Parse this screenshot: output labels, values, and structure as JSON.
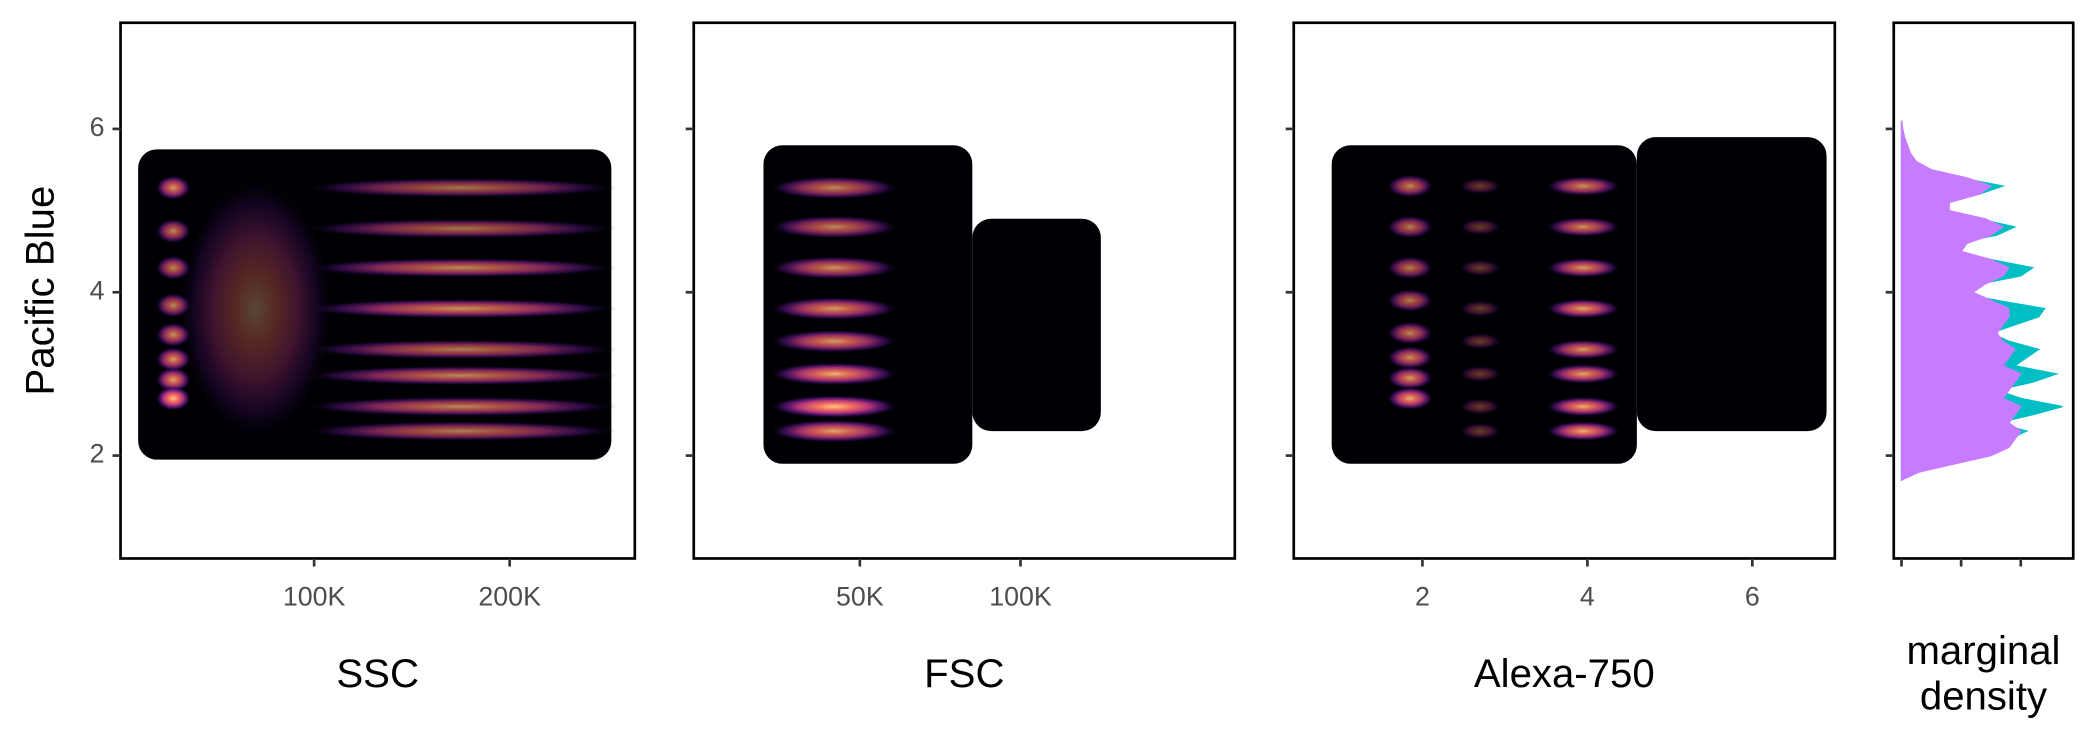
{
  "chart_data": [
    {
      "type": "heatmap",
      "xlabel": "SSC",
      "ylabel": "Pacific Blue",
      "xlim": [
        1000,
        264000
      ],
      "ylim": [
        0.74,
        7.3
      ],
      "xticks": [
        {
          "value": 100000,
          "label": "100K"
        },
        {
          "value": 200000,
          "label": "200K"
        }
      ],
      "yticks": [
        2,
        4,
        6
      ],
      "clouds": [
        {
          "x": [
            10000,
            252000
          ],
          "y": [
            1.95,
            5.75
          ]
        }
      ],
      "groups": [
        {
          "x": 70000,
          "sx": 40000,
          "sy": 1.6,
          "y": [
            3.8
          ],
          "w": [
            0.35
          ]
        },
        {
          "x": 175000,
          "sx": 80000,
          "sy": 0.12,
          "y": [
            5.28,
            4.78,
            4.3,
            3.8,
            3.3,
            2.98,
            2.6,
            2.3
          ],
          "w": [
            0.6,
            0.6,
            0.7,
            0.75,
            0.65,
            0.7,
            0.7,
            0.65
          ]
        },
        {
          "x": 28000,
          "sx": 9000,
          "sy": 0.15,
          "y": [
            5.28,
            4.75,
            4.3,
            3.84,
            3.48,
            3.18,
            2.93,
            2.7
          ],
          "w": [
            0.8,
            0.7,
            0.7,
            0.7,
            0.75,
            0.8,
            0.85,
            1.0
          ]
        }
      ]
    },
    {
      "type": "heatmap",
      "xlabel": "FSC",
      "xlim": [
        -1700,
        166700
      ],
      "ylim": [
        0.74,
        7.3
      ],
      "xticks": [
        {
          "value": 50000,
          "label": "50K"
        },
        {
          "value": 100000,
          "label": "100K"
        }
      ],
      "yticks": [
        2,
        4,
        6
      ],
      "clouds": [
        {
          "x": [
            20000,
            85000
          ],
          "y": [
            1.9,
            5.8
          ]
        },
        {
          "x": [
            85000,
            125000
          ],
          "y": [
            2.3,
            4.9
          ]
        }
      ],
      "groups": [
        {
          "x": 42000,
          "sx": 20000,
          "sy": 0.14,
          "y": [
            5.28,
            4.8,
            4.3,
            3.8,
            3.4,
            3.0,
            2.6,
            2.3
          ],
          "w": [
            0.7,
            0.7,
            0.75,
            0.8,
            0.8,
            0.9,
            1.0,
            0.85
          ]
        }
      ]
    },
    {
      "type": "heatmap",
      "xlabel": "Alexa-750",
      "xlim": [
        0.44,
        7.0
      ],
      "ylim": [
        0.74,
        7.3
      ],
      "xticks": [
        2,
        4,
        6
      ],
      "yticks": [
        2,
        4,
        6
      ],
      "clouds": [
        {
          "x": [
            0.9,
            4.6
          ],
          "y": [
            1.9,
            5.8
          ]
        },
        {
          "x": [
            4.6,
            6.9
          ],
          "y": [
            2.3,
            5.9
          ]
        }
      ],
      "groups": [
        {
          "x": 2.7,
          "sx": 0.25,
          "sy": 0.1,
          "y": [
            5.3,
            4.8,
            4.3,
            3.8,
            3.4,
            3.0,
            2.6,
            2.3
          ],
          "w": [
            0.35,
            0.35,
            0.35,
            0.35,
            0.35,
            0.35,
            0.35,
            0.35
          ]
        },
        {
          "x": 1.85,
          "sx": 0.28,
          "sy": 0.14,
          "y": [
            5.3,
            4.8,
            4.3,
            3.9,
            3.5,
            3.2,
            2.95,
            2.7
          ],
          "w": [
            0.7,
            0.65,
            0.65,
            0.65,
            0.7,
            0.75,
            0.8,
            0.9
          ]
        },
        {
          "x": 3.95,
          "sx": 0.45,
          "sy": 0.12,
          "y": [
            5.3,
            4.8,
            4.3,
            3.8,
            3.3,
            3.0,
            2.6,
            2.3
          ],
          "w": [
            0.75,
            0.75,
            0.8,
            0.85,
            0.8,
            0.85,
            0.9,
            0.9
          ]
        }
      ]
    },
    {
      "type": "density",
      "xlabel": [
        "marginal",
        "density"
      ],
      "xlim": [
        -0.13,
        2.88
      ],
      "ylim": [
        0.74,
        7.3
      ],
      "xticks": [
        0,
        1,
        2
      ],
      "yticks": [
        2,
        4,
        6
      ],
      "y": [
        1.7,
        1.8,
        1.9,
        2.0,
        2.1,
        2.2,
        2.3,
        2.4,
        2.5,
        2.6,
        2.7,
        2.8,
        2.9,
        3.0,
        3.1,
        3.2,
        3.3,
        3.4,
        3.5,
        3.6,
        3.7,
        3.8,
        3.9,
        4.0,
        4.1,
        4.2,
        4.3,
        4.4,
        4.5,
        4.6,
        4.7,
        4.8,
        4.9,
        5.0,
        5.1,
        5.2,
        5.3,
        5.4,
        5.5,
        5.6,
        5.7,
        5.8,
        5.9,
        6.0,
        6.1
      ],
      "series": [
        {
          "color": "#00bfc4",
          "values": [
            0,
            0.2,
            0.7,
            1.3,
            1.5,
            1.8,
            2.1,
            1.6,
            2.2,
            2.7,
            2.0,
            1.6,
            2.2,
            2.6,
            1.9,
            2.1,
            2.3,
            1.8,
            1.5,
            1.9,
            2.3,
            2.4,
            1.6,
            0.9,
            1.3,
            2.0,
            2.2,
            1.5,
            0.8,
            0.9,
            1.6,
            1.9,
            1.3,
            0.6,
            0.6,
            1.3,
            1.7,
            1.0,
            0.4,
            0.2,
            0.1,
            0.05,
            0.02,
            0.01,
            0
          ]
        },
        {
          "color": "#c77cff",
          "values": [
            0,
            0.3,
            0.9,
            1.5,
            1.8,
            1.9,
            2.0,
            1.8,
            1.9,
            2.0,
            1.7,
            1.8,
            1.9,
            2.0,
            1.7,
            1.8,
            1.9,
            1.7,
            1.6,
            1.7,
            1.8,
            1.8,
            1.5,
            1.2,
            1.4,
            1.7,
            1.8,
            1.5,
            1.0,
            1.1,
            1.5,
            1.7,
            1.4,
            0.8,
            0.8,
            1.3,
            1.5,
            1.1,
            0.5,
            0.25,
            0.15,
            0.1,
            0.05,
            0.02,
            0
          ]
        }
      ]
    }
  ]
}
